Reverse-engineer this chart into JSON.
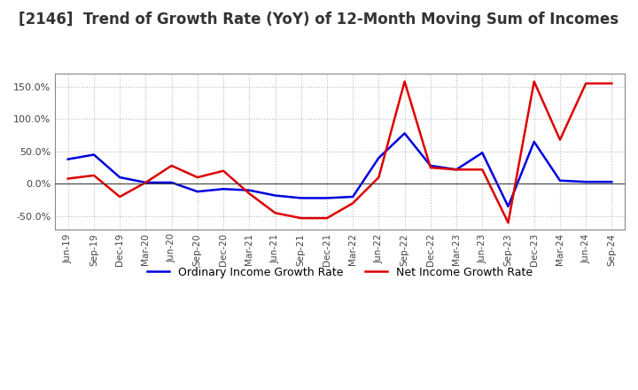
{
  "title": "[2146]  Trend of Growth Rate (YoY) of 12-Month Moving Sum of Incomes",
  "labels": [
    "Jun-19",
    "Sep-19",
    "Dec-19",
    "Mar-20",
    "Jun-20",
    "Sep-20",
    "Dec-20",
    "Mar-21",
    "Jun-21",
    "Sep-21",
    "Dec-21",
    "Mar-22",
    "Jun-22",
    "Sep-22",
    "Dec-22",
    "Mar-23",
    "Jun-23",
    "Sep-23",
    "Dec-23",
    "Mar-24",
    "Jun-24",
    "Sep-24"
  ],
  "ordinary_income": [
    38,
    45,
    10,
    2,
    2,
    -12,
    -8,
    -10,
    -18,
    -22,
    -22,
    -20,
    40,
    78,
    28,
    22,
    48,
    -35,
    65,
    5,
    3,
    3
  ],
  "net_income": [
    8,
    13,
    -20,
    2,
    28,
    10,
    20,
    -15,
    -45,
    -53,
    -53,
    -30,
    10,
    158,
    25,
    22,
    22,
    -60,
    158,
    68,
    155,
    155
  ],
  "ordinary_color": "#0000dd",
  "net_color": "#dd0000",
  "ylim": [
    -70,
    170
  ],
  "yticks": [
    -50,
    0,
    50,
    100,
    150
  ],
  "background_color": "#ffffff",
  "grid_color": "#bbbbbb",
  "legend_ordinary": "Ordinary Income Growth Rate",
  "legend_net": "Net Income Growth Rate",
  "title_fontsize": 12
}
